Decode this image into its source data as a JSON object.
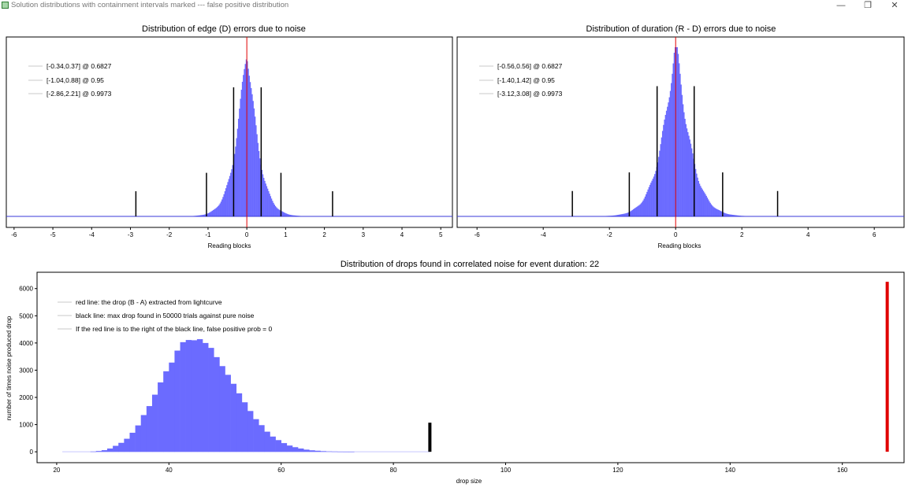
{
  "window": {
    "title": "Solution distributions with containment intervals marked --- false positive distribution",
    "buttons": [
      "—",
      "❐",
      "✕"
    ]
  },
  "chart_data": [
    {
      "type": "bar",
      "title": "Distribution of edge (D) errors due to noise",
      "xlabel": "Reading blocks",
      "ylabel": "",
      "xlim": [
        -6.2,
        5.3
      ],
      "x_ticks": [
        -6,
        -5,
        -4,
        -3,
        -2,
        -1,
        0,
        1,
        2,
        3,
        4,
        5
      ],
      "grid": false,
      "legend_position": "top-left",
      "series": [
        {
          "name": "[-0.34,0.37] @ 0.6827",
          "color": "#c8c8c8"
        },
        {
          "name": "[-1.04,0.88] @ 0.95",
          "color": "#c8c8c8"
        },
        {
          "name": "[-2.86,2.21] @ 0.9973",
          "color": "#c8c8c8"
        }
      ],
      "distribution": {
        "center": 0.0,
        "spread": 0.33,
        "shape": "laplace-like",
        "color": "#6b6bff"
      },
      "red_line_x": 0,
      "interval_lines": [
        {
          "x": -0.34,
          "height": 0.77
        },
        {
          "x": 0.37,
          "height": 0.77
        },
        {
          "x": -1.04,
          "height": 0.26
        },
        {
          "x": 0.88,
          "height": 0.26
        },
        {
          "x": -2.86,
          "height": 0.15
        },
        {
          "x": 2.21,
          "height": 0.15
        }
      ]
    },
    {
      "type": "bar",
      "title": "Distribution of duration (R - D) errors due to noise",
      "xlabel": "Reading blocks",
      "ylabel": "",
      "xlim": [
        -6.6,
        6.9
      ],
      "x_ticks": [
        -6,
        -4,
        -2,
        0,
        2,
        4,
        6
      ],
      "grid": false,
      "legend_position": "top-left",
      "series": [
        {
          "name": "[-0.56,0.56] @ 0.6827",
          "color": "#c8c8c8"
        },
        {
          "name": "[-1.40,1.42] @ 0.95",
          "color": "#c8c8c8"
        },
        {
          "name": "[-3.12,3.08] @ 0.9973",
          "color": "#c8c8c8"
        }
      ],
      "distribution": {
        "center": 0.0,
        "spread": 0.5,
        "shape": "laplace-like",
        "color": "#6b6bff"
      },
      "red_line_x": 0,
      "interval_lines": [
        {
          "x": -0.56,
          "height": 0.77
        },
        {
          "x": 0.56,
          "height": 0.77
        },
        {
          "x": -1.4,
          "height": 0.26
        },
        {
          "x": 1.42,
          "height": 0.26
        },
        {
          "x": -3.12,
          "height": 0.15
        },
        {
          "x": 3.08,
          "height": 0.15
        }
      ]
    },
    {
      "type": "bar",
      "title": "Distribution of drops found in correlated noise for event duration: 22",
      "xlabel": "drop size",
      "ylabel": "number of times noise produced drop",
      "xlim": [
        16.5,
        171
      ],
      "ylim": [
        -400,
        6600
      ],
      "x_ticks": [
        20,
        40,
        60,
        80,
        100,
        120,
        140,
        160
      ],
      "y_ticks": [
        0,
        1000,
        2000,
        3000,
        4000,
        5000,
        6000
      ],
      "grid": false,
      "legend_position": "top-left",
      "series": [
        {
          "name": "red line: the drop (B - A) extracted from lightcurve",
          "color": "#c8c8c8"
        },
        {
          "name": "black line: max drop found in 50000 trials against pure noise",
          "color": "#c8c8c8"
        },
        {
          "name": "If the red line is to the right of the black line, false positive prob = 0",
          "color": "#c8c8c8"
        }
      ],
      "bars": {
        "color": "#6b6bff",
        "bin_width": 1,
        "x": [
          26,
          27,
          28,
          29,
          30,
          31,
          32,
          33,
          34,
          35,
          36,
          37,
          38,
          39,
          40,
          41,
          42,
          43,
          44,
          45,
          46,
          47,
          48,
          49,
          50,
          51,
          52,
          53,
          54,
          55,
          56,
          57,
          58,
          59,
          60,
          61,
          62,
          63,
          64,
          65,
          66,
          67,
          68,
          69,
          70,
          71,
          72
        ],
        "values": [
          10,
          30,
          60,
          120,
          220,
          330,
          480,
          700,
          970,
          1350,
          1680,
          2100,
          2550,
          2960,
          3280,
          3720,
          4030,
          4110,
          4100,
          4140,
          4000,
          3820,
          3480,
          3150,
          2830,
          2500,
          2150,
          1820,
          1500,
          1200,
          980,
          740,
          560,
          430,
          320,
          230,
          170,
          120,
          80,
          55,
          40,
          25,
          15,
          10,
          6,
          4,
          2
        ]
      },
      "baseline_x": [
        21,
        86.5
      ],
      "black_line": {
        "x": 86.5,
        "y": 1070,
        "color": "#000000"
      },
      "red_line": {
        "x": 168,
        "y": 6250,
        "color": "#e00000"
      }
    }
  ]
}
